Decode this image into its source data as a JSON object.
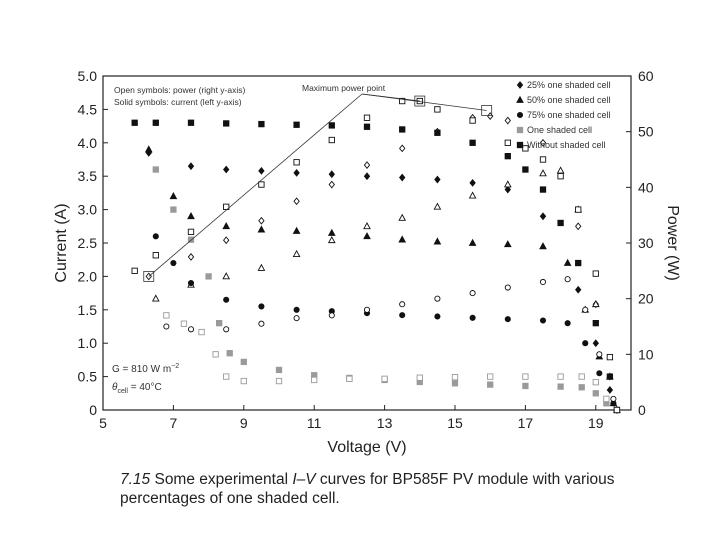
{
  "chart_data": {
    "type": "scatter",
    "x_axis": {
      "label": "Voltage (V)",
      "range": [
        5,
        20
      ],
      "ticks": [
        5,
        7,
        9,
        11,
        13,
        15,
        17,
        19
      ]
    },
    "y_left": {
      "label": "Current (A)",
      "range": [
        0,
        5
      ],
      "ticks": [
        "0",
        "0.5",
        "1.0",
        "1.5",
        "2.0",
        "2.5",
        "3.0",
        "3.5",
        "4.0",
        "4.5",
        "5.0"
      ]
    },
    "y_right": {
      "label": "Power (W)",
      "range": [
        0,
        60
      ],
      "ticks": [
        0,
        10,
        20,
        30,
        40,
        50,
        60
      ]
    },
    "notes": {
      "line1": "Open symbols: power (right y-axis)",
      "line2": "Solid symbols: current (left y-axis)"
    },
    "conditions": {
      "irradiance": "G = 810 W m",
      "irradiance_exp": "−2",
      "temp_prefix": "θ",
      "temp_sub": "cell",
      "temp_value": " = 40°C"
    },
    "annotation": {
      "text": "Maximum power point",
      "points": [
        [
          6.3,
          24
        ],
        [
          14.0,
          55.5
        ],
        [
          15.9,
          53.8
        ]
      ]
    },
    "series": [
      {
        "name": "25% one shaded cell",
        "marker": "diamond",
        "color": "#111111",
        "current": [
          [
            6.3,
            3.85
          ],
          [
            7.5,
            3.65
          ],
          [
            8.5,
            3.6
          ],
          [
            9.5,
            3.58
          ],
          [
            10.5,
            3.55
          ],
          [
            11.5,
            3.53
          ],
          [
            12.5,
            3.5
          ],
          [
            13.5,
            3.48
          ],
          [
            14.5,
            3.45
          ],
          [
            15.5,
            3.4
          ],
          [
            16.5,
            3.3
          ],
          [
            17.5,
            2.9
          ],
          [
            18.5,
            1.8
          ],
          [
            19.0,
            1.0
          ],
          [
            19.4,
            0.3
          ],
          [
            19.6,
            0.0
          ]
        ],
        "power": [
          [
            6.3,
            24
          ],
          [
            7.5,
            27.5
          ],
          [
            8.5,
            30.5
          ],
          [
            9.5,
            34
          ],
          [
            10.5,
            37.5
          ],
          [
            11.5,
            40.5
          ],
          [
            12.5,
            44
          ],
          [
            13.5,
            47
          ],
          [
            14.5,
            50
          ],
          [
            15.5,
            52.5
          ],
          [
            16.0,
            52.8
          ],
          [
            16.5,
            52
          ],
          [
            17.5,
            48
          ],
          [
            18.5,
            33
          ],
          [
            19.0,
            19
          ],
          [
            19.4,
            6
          ],
          [
            19.6,
            0
          ]
        ]
      },
      {
        "name": "50% one shaded cell",
        "marker": "triangle",
        "color": "#111111",
        "current": [
          [
            6.3,
            3.9
          ],
          [
            7.0,
            3.2
          ],
          [
            7.5,
            2.9
          ],
          [
            8.5,
            2.75
          ],
          [
            9.5,
            2.7
          ],
          [
            10.5,
            2.68
          ],
          [
            11.5,
            2.65
          ],
          [
            12.5,
            2.6
          ],
          [
            13.5,
            2.55
          ],
          [
            14.5,
            2.52
          ],
          [
            15.5,
            2.5
          ],
          [
            16.5,
            2.48
          ],
          [
            17.5,
            2.45
          ],
          [
            18.2,
            2.2
          ],
          [
            18.7,
            1.5
          ],
          [
            19.1,
            0.8
          ],
          [
            19.5,
            0.1
          ]
        ],
        "power": [
          [
            6.5,
            20
          ],
          [
            7.5,
            22.5
          ],
          [
            8.5,
            24
          ],
          [
            9.5,
            25.5
          ],
          [
            10.5,
            28
          ],
          [
            11.5,
            30.5
          ],
          [
            12.5,
            33
          ],
          [
            13.5,
            34.5
          ],
          [
            14.5,
            36.5
          ],
          [
            15.5,
            38.5
          ],
          [
            16.5,
            40.5
          ],
          [
            17.5,
            42.5
          ],
          [
            18.0,
            43
          ],
          [
            18.5,
            36
          ],
          [
            19.0,
            19
          ],
          [
            19.4,
            6
          ],
          [
            19.6,
            0
          ]
        ]
      },
      {
        "name": "75% one shaded cell",
        "marker": "circle",
        "color": "#111111",
        "current": [
          [
            6.5,
            2.6
          ],
          [
            7.0,
            2.2
          ],
          [
            7.5,
            1.9
          ],
          [
            8.5,
            1.65
          ],
          [
            9.5,
            1.55
          ],
          [
            10.5,
            1.5
          ],
          [
            11.5,
            1.48
          ],
          [
            12.5,
            1.45
          ],
          [
            13.5,
            1.42
          ],
          [
            14.5,
            1.4
          ],
          [
            15.5,
            1.38
          ],
          [
            16.5,
            1.36
          ],
          [
            17.5,
            1.34
          ],
          [
            18.2,
            1.3
          ],
          [
            18.7,
            1.0
          ],
          [
            19.1,
            0.55
          ],
          [
            19.5,
            0.1
          ]
        ],
        "power": [
          [
            6.8,
            15
          ],
          [
            7.5,
            14.5
          ],
          [
            8.5,
            14.5
          ],
          [
            9.5,
            15.5
          ],
          [
            10.5,
            16.5
          ],
          [
            11.5,
            17
          ],
          [
            12.5,
            18
          ],
          [
            13.5,
            19
          ],
          [
            14.5,
            20
          ],
          [
            15.5,
            21
          ],
          [
            16.5,
            22
          ],
          [
            17.5,
            23
          ],
          [
            18.2,
            23.5
          ],
          [
            18.7,
            18
          ],
          [
            19.1,
            10
          ],
          [
            19.5,
            2
          ]
        ]
      },
      {
        "name": "One shaded cell",
        "marker": "square-gray",
        "color": "#9a9a9a",
        "current": [
          [
            6.5,
            3.6
          ],
          [
            7.0,
            3.0
          ],
          [
            7.5,
            2.55
          ],
          [
            8.0,
            2.0
          ],
          [
            8.3,
            1.3
          ],
          [
            8.6,
            0.85
          ],
          [
            9.0,
            0.72
          ],
          [
            10.0,
            0.6
          ],
          [
            11.0,
            0.52
          ],
          [
            12.0,
            0.48
          ],
          [
            13.0,
            0.45
          ],
          [
            14.0,
            0.42
          ],
          [
            15.0,
            0.4
          ],
          [
            16.0,
            0.38
          ],
          [
            17.0,
            0.36
          ],
          [
            18.0,
            0.35
          ],
          [
            18.6,
            0.34
          ],
          [
            19.0,
            0.25
          ],
          [
            19.3,
            0.1
          ]
        ],
        "power": [
          [
            6.8,
            17
          ],
          [
            7.3,
            15.5
          ],
          [
            7.8,
            14
          ],
          [
            8.2,
            10
          ],
          [
            8.5,
            6
          ],
          [
            9.0,
            5.2
          ],
          [
            10.0,
            5.2
          ],
          [
            11.0,
            5.4
          ],
          [
            12.0,
            5.6
          ],
          [
            13.0,
            5.6
          ],
          [
            14.0,
            5.8
          ],
          [
            15.0,
            5.9
          ],
          [
            16.0,
            6
          ],
          [
            17.0,
            6
          ],
          [
            18.0,
            6
          ],
          [
            18.6,
            6
          ],
          [
            19.0,
            5
          ],
          [
            19.3,
            2
          ]
        ]
      },
      {
        "name": "Without shaded cell",
        "marker": "square",
        "color": "#111111",
        "current": [
          [
            5.9,
            4.3
          ],
          [
            6.5,
            4.3
          ],
          [
            7.5,
            4.3
          ],
          [
            8.5,
            4.29
          ],
          [
            9.5,
            4.28
          ],
          [
            10.5,
            4.27
          ],
          [
            11.5,
            4.26
          ],
          [
            12.5,
            4.24
          ],
          [
            13.5,
            4.2
          ],
          [
            14.5,
            4.15
          ],
          [
            15.5,
            4.0
          ],
          [
            16.5,
            3.8
          ],
          [
            17.0,
            3.6
          ],
          [
            17.5,
            3.3
          ],
          [
            18.0,
            2.8
          ],
          [
            18.5,
            2.2
          ],
          [
            19.0,
            1.3
          ],
          [
            19.4,
            0.5
          ],
          [
            19.6,
            0.0
          ]
        ],
        "power": [
          [
            5.9,
            25
          ],
          [
            6.5,
            27.8
          ],
          [
            7.5,
            32
          ],
          [
            8.5,
            36.5
          ],
          [
            9.5,
            40.5
          ],
          [
            10.5,
            44.5
          ],
          [
            11.5,
            48.5
          ],
          [
            12.5,
            52.5
          ],
          [
            13.5,
            55.5
          ],
          [
            14.0,
            55.5
          ],
          [
            14.5,
            54
          ],
          [
            15.5,
            52
          ],
          [
            16.5,
            48
          ],
          [
            17.0,
            47
          ],
          [
            17.5,
            45
          ],
          [
            18.0,
            42
          ],
          [
            18.5,
            36
          ],
          [
            19.0,
            24.5
          ],
          [
            19.4,
            9.5
          ],
          [
            19.6,
            0
          ]
        ]
      }
    ]
  },
  "caption": {
    "number": "7.15",
    "text_before": " Some experimental ",
    "iv_i": "I",
    "iv_dash": "–",
    "iv_v": "V",
    "text_after": " curves for BP585F PV module with various percentages of one shaded cell."
  }
}
